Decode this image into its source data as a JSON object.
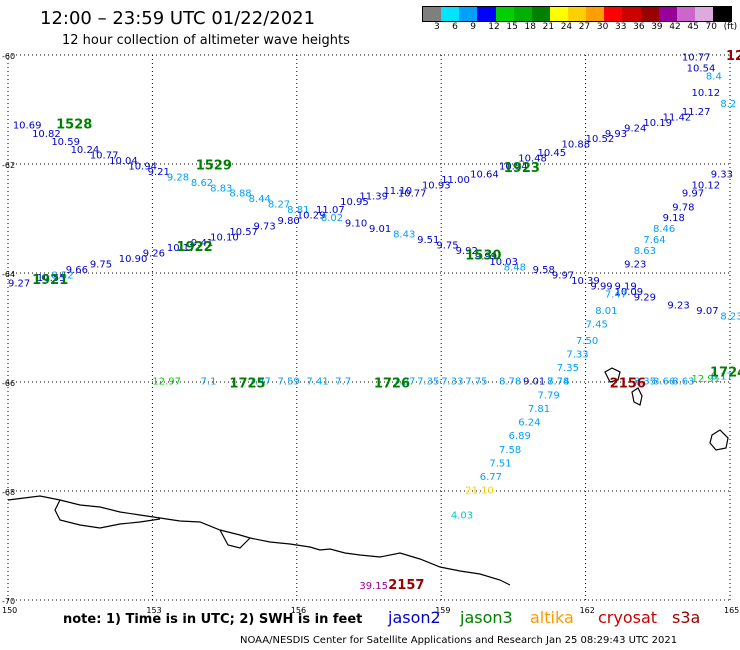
{
  "header": {
    "title": "12:00 – 23:59 UTC 01/22/2021",
    "subtitle": "12 hour collection of altimeter wave heights"
  },
  "legend": {
    "swatch_colors": [
      "#7f7f7f",
      "#00e5ff",
      "#00a0ff",
      "#0000ff",
      "#00d000",
      "#00b000",
      "#008000",
      "#ffff00",
      "#ffd000",
      "#ffa000",
      "#ff0000",
      "#cc0000",
      "#990000",
      "#990099",
      "#cc66cc",
      "#ddaadd",
      "#000000"
    ],
    "labels": [
      "3",
      "6",
      "9",
      "12",
      "15",
      "18",
      "21",
      "24",
      "27",
      "30",
      "33",
      "36",
      "39",
      "42",
      "45",
      "70",
      "(ft)"
    ]
  },
  "map_axes": {
    "lat_labels": [
      {
        "text": "-60",
        "lat": -60
      },
      {
        "text": "-62",
        "lat": -62
      },
      {
        "text": "-64",
        "lat": -64
      },
      {
        "text": "-66",
        "lat": -66
      },
      {
        "text": "-68",
        "lat": -68
      },
      {
        "text": "-70",
        "lat": -70
      }
    ],
    "lon_labels": [
      {
        "text": "150",
        "lon": 150
      },
      {
        "text": "153",
        "lon": 153
      },
      {
        "text": "156",
        "lon": 156
      },
      {
        "text": "159",
        "lon": 159
      },
      {
        "text": "162",
        "lon": 162
      },
      {
        "text": "165",
        "lon": 165
      }
    ]
  },
  "satellites": {
    "jason2": {
      "label": "jason2",
      "color": "#0000cc"
    },
    "jason3": {
      "label": "jason3",
      "color": "#008000"
    },
    "altika": {
      "label": "altika",
      "color": "#ff9900"
    },
    "cryosat": {
      "label": "cryosat",
      "color": "#cc0000"
    },
    "s3a": {
      "label": "s3a",
      "color": "#990000"
    }
  },
  "pass_labels": [
    {
      "text": "1528",
      "color": "#008000",
      "lon": 151.0,
      "lat": -61.35
    },
    {
      "text": "1529",
      "color": "#008000",
      "lon": 153.9,
      "lat": -62.1
    },
    {
      "text": "1922",
      "color": "#008000",
      "lon": 153.5,
      "lat": -63.6
    },
    {
      "text": "1921",
      "color": "#008000",
      "lon": 150.5,
      "lat": -64.2
    },
    {
      "text": "1923",
      "color": "#008000",
      "lon": 160.3,
      "lat": -62.15
    },
    {
      "text": "1530",
      "color": "#008000",
      "lon": 159.5,
      "lat": -63.75
    },
    {
      "text": "1725",
      "color": "#008000",
      "lon": 154.6,
      "lat": -66.1
    },
    {
      "text": "1726",
      "color": "#008000",
      "lon": 157.6,
      "lat": -66.1
    },
    {
      "text": "2156",
      "color": "#990000",
      "lon": 162.5,
      "lat": -66.1
    },
    {
      "text": "2157",
      "color": "#990000",
      "lon": 157.9,
      "lat": -69.8
    },
    {
      "text": "1724",
      "color": "#008000",
      "lon": 164.6,
      "lat": -65.9
    }
  ],
  "wave_labels": [
    {
      "text": "10.69",
      "color": "#0000cc",
      "lon": 150.1,
      "lat": -61.35
    },
    {
      "text": "10.82",
      "color": "#0000cc",
      "lon": 150.5,
      "lat": -61.5
    },
    {
      "text": "10.59",
      "color": "#0000cc",
      "lon": 150.9,
      "lat": -61.65
    },
    {
      "text": "10.24",
      "color": "#0000cc",
      "lon": 151.3,
      "lat": -61.8
    },
    {
      "text": "10.77",
      "color": "#0000cc",
      "lon": 151.7,
      "lat": -61.9
    },
    {
      "text": "10.04",
      "color": "#0000cc",
      "lon": 152.1,
      "lat": -62.0
    },
    {
      "text": "10.94",
      "color": "#0000cc",
      "lon": 152.5,
      "lat": -62.1
    },
    {
      "text": "9.21",
      "color": "#0000cc",
      "lon": 152.9,
      "lat": -62.2
    },
    {
      "text": "9.28",
      "color": "#00a0ff",
      "lon": 153.3,
      "lat": -62.3
    },
    {
      "text": "8.62",
      "color": "#00a0ff",
      "lon": 153.8,
      "lat": -62.4
    },
    {
      "text": "8.83",
      "color": "#00a0ff",
      "lon": 154.2,
      "lat": -62.5
    },
    {
      "text": "8.88",
      "color": "#00a0ff",
      "lon": 154.6,
      "lat": -62.6
    },
    {
      "text": "8.44",
      "color": "#00a0ff",
      "lon": 155.0,
      "lat": -62.7
    },
    {
      "text": "8.27",
      "color": "#00a0ff",
      "lon": 155.4,
      "lat": -62.8
    },
    {
      "text": "8.81",
      "color": "#00a0ff",
      "lon": 155.8,
      "lat": -62.9
    },
    {
      "text": "8.02",
      "color": "#00a0ff",
      "lon": 156.5,
      "lat": -63.05
    },
    {
      "text": "9.10",
      "color": "#0000cc",
      "lon": 157.0,
      "lat": -63.15
    },
    {
      "text": "9.01",
      "color": "#0000cc",
      "lon": 157.5,
      "lat": -63.25
    },
    {
      "text": "8.43",
      "color": "#00a0ff",
      "lon": 158.0,
      "lat": -63.35
    },
    {
      "text": "9.51",
      "color": "#0000cc",
      "lon": 158.5,
      "lat": -63.45
    },
    {
      "text": "9.75",
      "color": "#0000cc",
      "lon": 158.9,
      "lat": -63.55
    },
    {
      "text": "9.92",
      "color": "#0000cc",
      "lon": 159.3,
      "lat": -63.65
    },
    {
      "text": "9.99",
      "color": "#0000cc",
      "lon": 159.7,
      "lat": -63.75
    },
    {
      "text": "10.03",
      "color": "#0000cc",
      "lon": 160.0,
      "lat": -63.85
    },
    {
      "text": "8.48",
      "color": "#00a0ff",
      "lon": 160.3,
      "lat": -63.95
    },
    {
      "text": "9.58",
      "color": "#0000cc",
      "lon": 160.9,
      "lat": -64.0
    },
    {
      "text": "9.97",
      "color": "#0000cc",
      "lon": 161.3,
      "lat": -64.1
    },
    {
      "text": "10.39",
      "color": "#0000cc",
      "lon": 161.7,
      "lat": -64.2
    },
    {
      "text": "9.99",
      "color": "#0000cc",
      "lon": 162.1,
      "lat": -64.3
    },
    {
      "text": "10.09",
      "color": "#0000cc",
      "lon": 162.6,
      "lat": -64.4
    },
    {
      "text": "9.29",
      "color": "#0000cc",
      "lon": 163.0,
      "lat": -64.5
    },
    {
      "text": "9.23",
      "color": "#0000cc",
      "lon": 163.7,
      "lat": -64.65
    },
    {
      "text": "9.07",
      "color": "#0000cc",
      "lon": 164.3,
      "lat": -64.75
    },
    {
      "text": "8.23",
      "color": "#00a0ff",
      "lon": 164.8,
      "lat": -64.85
    },
    {
      "text": "9.27",
      "color": "#0000cc",
      "lon": 150.0,
      "lat": -64.25
    },
    {
      "text": "10.55",
      "color": "#0000cc",
      "lon": 150.6,
      "lat": -64.15
    },
    {
      "text": "8.52",
      "color": "#00a0ff",
      "lon": 150.9,
      "lat": -64.1
    },
    {
      "text": "9.66",
      "color": "#0000cc",
      "lon": 151.2,
      "lat": -64.0
    },
    {
      "text": "9.75",
      "color": "#0000cc",
      "lon": 151.7,
      "lat": -63.9
    },
    {
      "text": "10.90",
      "color": "#0000cc",
      "lon": 152.3,
      "lat": -63.8
    },
    {
      "text": "9.26",
      "color": "#0000cc",
      "lon": 152.8,
      "lat": -63.7
    },
    {
      "text": "10.17",
      "color": "#0000cc",
      "lon": 153.3,
      "lat": -63.6
    },
    {
      "text": "9.41",
      "color": "#0000cc",
      "lon": 153.8,
      "lat": -63.5
    },
    {
      "text": "10.10",
      "color": "#0000cc",
      "lon": 154.2,
      "lat": -63.4
    },
    {
      "text": "10.57",
      "color": "#0000cc",
      "lon": 154.6,
      "lat": -63.3
    },
    {
      "text": "9.73",
      "color": "#0000cc",
      "lon": 155.1,
      "lat": -63.2
    },
    {
      "text": "9.80",
      "color": "#0000cc",
      "lon": 155.6,
      "lat": -63.1
    },
    {
      "text": "10.29",
      "color": "#0000cc",
      "lon": 156.0,
      "lat": -63.0
    },
    {
      "text": "11.07",
      "color": "#0000cc",
      "lon": 156.4,
      "lat": -62.9
    },
    {
      "text": "10.95",
      "color": "#0000cc",
      "lon": 156.9,
      "lat": -62.75
    },
    {
      "text": "11.39",
      "color": "#0000cc",
      "lon": 157.3,
      "lat": -62.65
    },
    {
      "text": "11.10",
      "color": "#0000cc",
      "lon": 157.8,
      "lat": -62.55
    },
    {
      "text": "10.77",
      "color": "#0000cc",
      "lon": 158.1,
      "lat": -62.6
    },
    {
      "text": "10.93",
      "color": "#0000cc",
      "lon": 158.6,
      "lat": -62.45
    },
    {
      "text": "11.00",
      "color": "#0000cc",
      "lon": 159.0,
      "lat": -62.35
    },
    {
      "text": "10.64",
      "color": "#0000cc",
      "lon": 159.6,
      "lat": -62.25
    },
    {
      "text": "10.54",
      "color": "#0000cc",
      "lon": 160.2,
      "lat": -62.1
    },
    {
      "text": "10.48",
      "color": "#0000cc",
      "lon": 160.6,
      "lat": -61.95
    },
    {
      "text": "10.45",
      "color": "#0000cc",
      "lon": 161.0,
      "lat": -61.85
    },
    {
      "text": "10.88",
      "color": "#0000cc",
      "lon": 161.5,
      "lat": -61.7
    },
    {
      "text": "10.52",
      "color": "#0000cc",
      "lon": 162.0,
      "lat": -61.6
    },
    {
      "text": "9.93",
      "color": "#0000cc",
      "lon": 162.4,
      "lat": -61.5
    },
    {
      "text": "9.24",
      "color": "#0000cc",
      "lon": 162.8,
      "lat": -61.4
    },
    {
      "text": "10.19",
      "color": "#0000cc",
      "lon": 163.2,
      "lat": -61.3
    },
    {
      "text": "11.42",
      "color": "#0000cc",
      "lon": 163.6,
      "lat": -61.2
    },
    {
      "text": "11.27",
      "color": "#0000cc",
      "lon": 164.0,
      "lat": -61.1
    },
    {
      "text": "10.77",
      "color": "#0000cc",
      "lon": 164.0,
      "lat": -60.1
    },
    {
      "text": "10.54",
      "color": "#0000cc",
      "lon": 164.1,
      "lat": -60.3
    },
    {
      "text": "8.4",
      "color": "#00a0ff",
      "lon": 164.5,
      "lat": -60.45
    },
    {
      "text": "10.12",
      "color": "#0000cc",
      "lon": 164.2,
      "lat": -60.75
    },
    {
      "text": "8.2",
      "color": "#00a0ff",
      "lon": 164.8,
      "lat": -60.95
    },
    {
      "text": "9.33",
      "color": "#0000cc",
      "lon": 164.6,
      "lat": -62.25
    },
    {
      "text": "10.12",
      "color": "#0000cc",
      "lon": 164.2,
      "lat": -62.45
    },
    {
      "text": "9.97",
      "color": "#0000cc",
      "lon": 164.0,
      "lat": -62.6
    },
    {
      "text": "9.78",
      "color": "#0000cc",
      "lon": 163.8,
      "lat": -62.85
    },
    {
      "text": "9.18",
      "color": "#0000cc",
      "lon": 163.6,
      "lat": -63.05
    },
    {
      "text": "8.46",
      "color": "#00a0ff",
      "lon": 163.4,
      "lat": -63.25
    },
    {
      "text": "7.64",
      "color": "#00a0ff",
      "lon": 163.2,
      "lat": -63.45
    },
    {
      "text": "8.63",
      "color": "#00a0ff",
      "lon": 163.0,
      "lat": -63.65
    },
    {
      "text": "9.23",
      "color": "#0000cc",
      "lon": 162.8,
      "lat": -63.9
    },
    {
      "text": "9.19",
      "color": "#0000cc",
      "lon": 162.6,
      "lat": -64.3
    },
    {
      "text": "7.47",
      "color": "#00a0ff",
      "lon": 162.4,
      "lat": -64.45
    },
    {
      "text": "8.01",
      "color": "#00a0ff",
      "lon": 162.2,
      "lat": -64.75
    },
    {
      "text": "7.45",
      "color": "#00a0ff",
      "lon": 162.0,
      "lat": -65.0
    },
    {
      "text": "7.50",
      "color": "#00a0ff",
      "lon": 161.8,
      "lat": -65.3
    },
    {
      "text": "7.33",
      "color": "#00a0ff",
      "lon": 161.6,
      "lat": -65.55
    },
    {
      "text": "7.35",
      "color": "#00a0ff",
      "lon": 161.4,
      "lat": -65.8
    },
    {
      "text": "7.74",
      "color": "#00a0ff",
      "lon": 161.2,
      "lat": -66.05
    },
    {
      "text": "7.79",
      "color": "#00a0ff",
      "lon": 161.0,
      "lat": -66.3
    },
    {
      "text": "7.81",
      "color": "#00a0ff",
      "lon": 160.8,
      "lat": -66.55
    },
    {
      "text": "6.24",
      "color": "#00a0ff",
      "lon": 160.6,
      "lat": -66.8
    },
    {
      "text": "6.89",
      "color": "#00a0ff",
      "lon": 160.4,
      "lat": -67.05
    },
    {
      "text": "7.58",
      "color": "#00a0ff",
      "lon": 160.2,
      "lat": -67.3
    },
    {
      "text": "7.51",
      "color": "#00a0ff",
      "lon": 160.0,
      "lat": -67.55
    },
    {
      "text": "6.77",
      "color": "#00a0ff",
      "lon": 159.8,
      "lat": -67.8
    },
    {
      "text": "21.10",
      "color": "#ffcc00",
      "lon": 159.5,
      "lat": -68.05
    },
    {
      "text": "4.03",
      "color": "#00cccc",
      "lon": 159.2,
      "lat": -68.5
    },
    {
      "text": "39.15",
      "color": "#990099",
      "lon": 157.3,
      "lat": -69.8
    },
    {
      "text": "12.97",
      "color": "#00d000",
      "lon": 153.0,
      "lat": -66.05
    },
    {
      "text": "7.1",
      "color": "#00a0ff",
      "lon": 154.0,
      "lat": -66.05
    },
    {
      "text": "7.47",
      "color": "#00a0ff",
      "lon": 155.0,
      "lat": -66.05
    },
    {
      "text": "7.59",
      "color": "#00a0ff",
      "lon": 155.6,
      "lat": -66.05
    },
    {
      "text": "7.41",
      "color": "#00a0ff",
      "lon": 156.2,
      "lat": -66.05
    },
    {
      "text": "7.7",
      "color": "#00a0ff",
      "lon": 156.8,
      "lat": -66.05
    },
    {
      "text": "7.27",
      "color": "#00a0ff",
      "lon": 158.0,
      "lat": -66.05
    },
    {
      "text": "7.35",
      "color": "#00a0ff",
      "lon": 158.5,
      "lat": -66.05
    },
    {
      "text": "7.33",
      "color": "#00a0ff",
      "lon": 159.0,
      "lat": -66.05
    },
    {
      "text": "7.75",
      "color": "#00a0ff",
      "lon": 159.5,
      "lat": -66.05
    },
    {
      "text": "8.78",
      "color": "#00a0ff",
      "lon": 160.2,
      "lat": -66.05
    },
    {
      "text": "9.01",
      "color": "#0000cc",
      "lon": 160.7,
      "lat": -66.05
    },
    {
      "text": "8.78",
      "color": "#00a0ff",
      "lon": 161.2,
      "lat": -66.05
    },
    {
      "text": "8.35",
      "color": "#00a0ff",
      "lon": 163.0,
      "lat": -66.05
    },
    {
      "text": "8.66",
      "color": "#00a0ff",
      "lon": 163.4,
      "lat": -66.05
    },
    {
      "text": "8.63",
      "color": "#00a0ff",
      "lon": 163.8,
      "lat": -66.05
    },
    {
      "text": "12.91",
      "color": "#00d000",
      "lon": 164.2,
      "lat": -66.0
    },
    {
      "text": "8.17",
      "color": "#00a0ff",
      "lon": 164.6,
      "lat": -65.95
    }
  ],
  "cryosat_corner": {
    "text": "12",
    "color": "#990000"
  },
  "footer": {
    "note": "note:  1) Time is in UTC;  2) SWH is in feet",
    "credit": "NOAA/NESDIS Center for Satellite Applications and Research    Jan 25 08:29:43 UTC 2021"
  }
}
